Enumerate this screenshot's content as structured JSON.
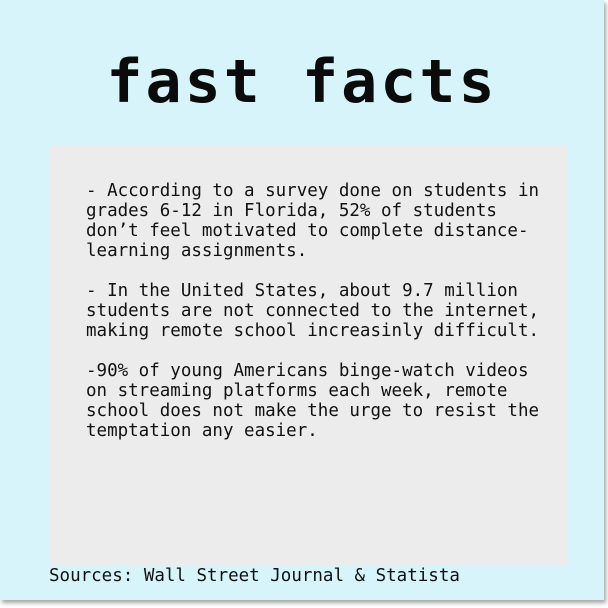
{
  "colors": {
    "background": "#d6f4f9",
    "facts_box": "#ececec",
    "text": "#111111"
  },
  "title": "fast facts",
  "facts": [
    "- According to a survey done on students in grades 6-12 in Florida, 52% of students don’t feel motivated to complete distance-learning assignments.",
    "- In the United States, about 9.7 million students are not connected to the internet, making remote school increasinly difficult.",
    "-90% of young Americans binge-watch videos on streaming platforms each week, remote school does not make the urge to resist the temptation any easier."
  ],
  "sources": "Sources: Wall Street Journal & Statista"
}
